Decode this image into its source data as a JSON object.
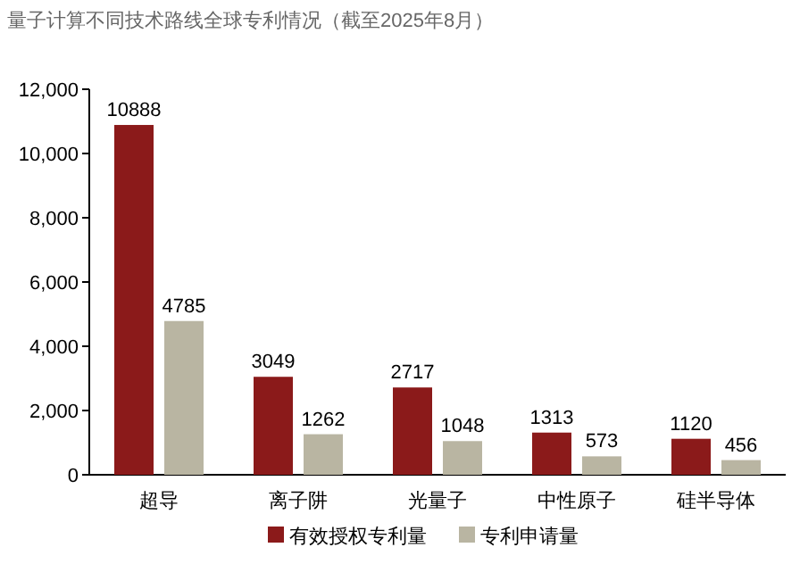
{
  "chart_data": {
    "type": "bar",
    "title": "量子计算不同技术路线全球专利情况（截至2025年8月）",
    "categories": [
      "超导",
      "离子阱",
      "光量子",
      "中性原子",
      "硅半导体"
    ],
    "series": [
      {
        "name": "有效授权专利量",
        "color": "#8b1a1a",
        "values": [
          10888,
          3049,
          2717,
          1313,
          1120
        ]
      },
      {
        "name": "专利申请量",
        "color": "#b9b5a2",
        "values": [
          4785,
          1262,
          1048,
          573,
          456
        ]
      }
    ],
    "ylim": [
      0,
      12000
    ],
    "yticks": [
      0,
      {
        "value": 2000,
        "label": "2,000"
      },
      {
        "value": 4000,
        "label": "4,000"
      },
      {
        "value": 6000,
        "label": "6,000"
      },
      {
        "value": 8000,
        "label": "8,000"
      },
      {
        "value": 10000,
        "label": "10,000"
      },
      {
        "value": 12000,
        "label": "12,000"
      }
    ],
    "data_labels": true,
    "grid": false,
    "legend": "bottom"
  }
}
